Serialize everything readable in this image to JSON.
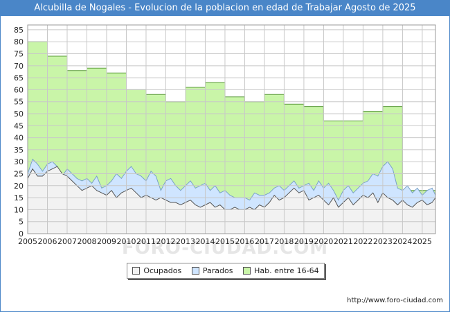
{
  "title": "Alcubilla de Nogales - Evolucion de la poblacion en edad de Trabajar Agosto de 2025",
  "source_url": "http://www.foro-ciudad.com",
  "watermark": "FORO-CIUDAD.COM",
  "legend": [
    {
      "label": "Ocupados",
      "color": "#f2f2f2"
    },
    {
      "label": "Parados",
      "color": "#cfe5ff"
    },
    {
      "label": "Hab. entre 16-64",
      "color": "#c9f5a8"
    }
  ],
  "chart_data": {
    "type": "area",
    "title": "Alcubilla de Nogales - Evolucion de la poblacion en edad de Trabajar Agosto de 2025",
    "xlabel": "",
    "ylabel": "",
    "xlim": [
      2005,
      2025.67
    ],
    "ylim": [
      0,
      87
    ],
    "x_ticks": [
      "2005",
      "2006",
      "2007",
      "2008",
      "2009",
      "2010",
      "2011",
      "2012",
      "2013",
      "2014",
      "2015",
      "2016",
      "2017",
      "2018",
      "2019",
      "2020",
      "2021",
      "2022",
      "2023",
      "2024",
      "2025"
    ],
    "y_ticks": [
      0,
      5,
      10,
      15,
      20,
      25,
      30,
      35,
      40,
      45,
      50,
      55,
      60,
      65,
      70,
      75,
      80,
      85
    ],
    "grid": true,
    "legend_position": "bottom",
    "series": [
      {
        "name": "Hab. entre 16-64",
        "color": "#c9f5a8",
        "stroke": "#5a9a3a",
        "step": true,
        "x": [
          2005,
          2006,
          2007,
          2008,
          2009,
          2010,
          2011,
          2012,
          2013,
          2014,
          2015,
          2016,
          2017,
          2018,
          2019,
          2020,
          2021,
          2022,
          2023,
          2024
        ],
        "values": [
          80,
          74,
          68,
          69,
          67,
          60,
          58,
          55,
          61,
          63,
          57,
          55,
          58,
          54,
          53,
          47,
          47,
          51,
          53,
          18
        ]
      },
      {
        "name": "Parados",
        "color": "#cfe5ff",
        "stroke": "#7aa2c8",
        "x": [
          2005,
          2005.25,
          2005.5,
          2005.75,
          2006,
          2006.25,
          2006.5,
          2006.75,
          2007,
          2007.25,
          2007.5,
          2007.75,
          2008,
          2008.25,
          2008.5,
          2008.75,
          2009,
          2009.25,
          2009.5,
          2009.75,
          2010,
          2010.25,
          2010.5,
          2010.75,
          2011,
          2011.25,
          2011.5,
          2011.75,
          2012,
          2012.25,
          2012.5,
          2012.75,
          2013,
          2013.25,
          2013.5,
          2013.75,
          2014,
          2014.25,
          2014.5,
          2014.75,
          2015,
          2015.25,
          2015.5,
          2015.75,
          2016,
          2016.25,
          2016.5,
          2016.75,
          2017,
          2017.25,
          2017.5,
          2017.75,
          2018,
          2018.25,
          2018.5,
          2018.75,
          2019,
          2019.25,
          2019.5,
          2019.75,
          2020,
          2020.25,
          2020.5,
          2020.75,
          2021,
          2021.25,
          2021.5,
          2021.75,
          2022,
          2022.25,
          2022.5,
          2022.75,
          2023,
          2023.25,
          2023.5,
          2023.75,
          2024,
          2024.25,
          2024.5,
          2024.75,
          2025,
          2025.25,
          2025.5,
          2025.67
        ],
        "values": [
          25,
          31,
          29,
          26,
          29,
          30,
          28,
          24,
          27,
          25,
          23,
          22,
          23,
          21,
          24,
          19,
          20,
          22,
          25,
          23,
          26,
          28,
          25,
          24,
          22,
          26,
          24,
          18,
          22,
          23,
          20,
          18,
          20,
          22,
          19,
          20,
          21,
          18,
          20,
          17,
          18,
          16,
          15,
          15,
          15,
          14,
          17,
          16,
          16,
          17,
          19,
          20,
          18,
          20,
          22,
          19,
          20,
          21,
          18,
          22,
          19,
          21,
          18,
          14,
          18,
          20,
          17,
          19,
          21,
          22,
          25,
          24,
          28,
          30,
          27,
          19,
          18,
          20,
          17,
          19,
          16,
          18,
          19,
          16
        ]
      },
      {
        "name": "Ocupados",
        "color": "#f2f2f2",
        "stroke": "#555555",
        "x": [
          2005,
          2005.25,
          2005.5,
          2005.75,
          2006,
          2006.25,
          2006.5,
          2006.75,
          2007,
          2007.25,
          2007.5,
          2007.75,
          2008,
          2008.25,
          2008.5,
          2008.75,
          2009,
          2009.25,
          2009.5,
          2009.75,
          2010,
          2010.25,
          2010.5,
          2010.75,
          2011,
          2011.25,
          2011.5,
          2011.75,
          2012,
          2012.25,
          2012.5,
          2012.75,
          2013,
          2013.25,
          2013.5,
          2013.75,
          2014,
          2014.25,
          2014.5,
          2014.75,
          2015,
          2015.25,
          2015.5,
          2015.75,
          2016,
          2016.25,
          2016.5,
          2016.75,
          2017,
          2017.25,
          2017.5,
          2017.75,
          2018,
          2018.25,
          2018.5,
          2018.75,
          2019,
          2019.25,
          2019.5,
          2019.75,
          2020,
          2020.25,
          2020.5,
          2020.75,
          2021,
          2021.25,
          2021.5,
          2021.75,
          2022,
          2022.25,
          2022.5,
          2022.75,
          2023,
          2023.25,
          2023.5,
          2023.75,
          2024,
          2024.25,
          2024.5,
          2024.75,
          2025,
          2025.25,
          2025.5,
          2025.67
        ],
        "values": [
          23,
          27,
          24,
          24,
          26,
          27,
          28,
          25,
          24,
          22,
          20,
          18,
          19,
          20,
          18,
          17,
          16,
          18,
          15,
          17,
          18,
          19,
          17,
          15,
          16,
          15,
          14,
          15,
          14,
          13,
          13,
          12,
          13,
          14,
          12,
          11,
          12,
          13,
          11,
          12,
          10,
          10,
          11,
          10,
          10,
          11,
          10,
          12,
          11,
          13,
          16,
          14,
          15,
          17,
          19,
          17,
          18,
          14,
          15,
          16,
          14,
          12,
          15,
          11,
          13,
          15,
          12,
          14,
          16,
          15,
          17,
          13,
          17,
          15,
          14,
          12,
          14,
          12,
          11,
          13,
          14,
          12,
          13,
          15
        ]
      }
    ]
  }
}
